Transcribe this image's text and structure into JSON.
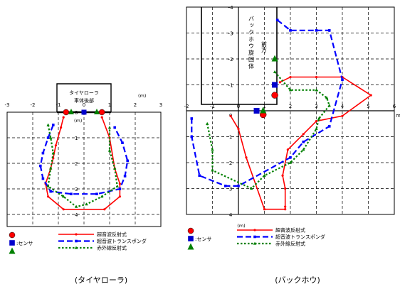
{
  "legend": {
    "sensor_label": ":センサ",
    "ultrasonic_reflection": "超音波反射式",
    "ultrasonic_transponder": "超音波トランスポンダ",
    "infrared_reflection": "赤外線反射式"
  },
  "colors": {
    "ultrasonic_reflection": "#ff0000",
    "ultrasonic_transponder": "#0000ff",
    "infrared_reflection": "#008000",
    "sensor_circle": "#ff0000",
    "sensor_square": "#0000cc",
    "sensor_triangle": "#008000",
    "grid": "#000000"
  },
  "chart_data": [
    {
      "type": "line",
      "caption": "(タイヤローラ)",
      "vehicle_label_line1": "タイヤローラ",
      "vehicle_label_line2": "車体後部",
      "x_unit": "(m)",
      "y_unit": "(m)",
      "xlim": [
        -3,
        3
      ],
      "ylim": [
        0,
        4.5
      ],
      "x_ticks": [
        "-3",
        "-2",
        "-1",
        "0",
        "1",
        "2",
        "3"
      ],
      "y_ticks": [
        "0",
        "1",
        "2",
        "3",
        "4"
      ],
      "grid": true,
      "legend_position": "bottom",
      "sensors": {
        "circles": [
          [
            -0.7,
            0.0
          ],
          [
            0.7,
            0.0
          ]
        ],
        "squares": [
          [
            0.0,
            0.0
          ]
        ],
        "triangles": [
          [
            -0.5,
            0.0
          ],
          [
            0.5,
            0.0
          ]
        ]
      },
      "series": [
        {
          "key": "ultrasonic_reflection",
          "style": "solid",
          "x": [
            -0.8,
            -0.9,
            -1.1,
            -1.2,
            -1.3,
            -1.5,
            -1.4,
            -0.8,
            0.8,
            1.4,
            1.4,
            1.2,
            1.0,
            0.7
          ],
          "y": [
            0.2,
            0.6,
            1.3,
            1.8,
            2.2,
            2.8,
            3.3,
            3.8,
            3.8,
            3.3,
            2.8,
            2.2,
            1.0,
            0.2
          ]
        },
        {
          "key": "ultrasonic_transponder",
          "style": "dash",
          "x": [
            -1.2,
            -1.4,
            -1.6,
            -1.7,
            -1.6,
            -1.3,
            -0.5,
            0.5,
            1.4,
            1.6,
            1.7,
            1.5,
            1.2
          ],
          "y": [
            0.5,
            1.0,
            1.6,
            2.1,
            2.6,
            3.1,
            3.2,
            3.2,
            3.0,
            2.5,
            1.9,
            1.2,
            0.6
          ]
        },
        {
          "key": "infrared_reflection",
          "style": "dot",
          "x": [
            -1.4,
            -1.3,
            -1.2,
            -1.3,
            -1.4,
            -0.8,
            -0.3,
            0.1,
            0.7,
            1.3,
            1.2,
            1.0,
            1.0
          ],
          "y": [
            0.5,
            1.0,
            1.6,
            2.2,
            2.9,
            3.3,
            3.7,
            3.6,
            3.3,
            2.9,
            2.2,
            1.5,
            0.6
          ]
        }
      ]
    },
    {
      "type": "line",
      "caption": "(バックホウ)",
      "vehicle_label": "バックホウ旋回体",
      "front_label": "前方",
      "x_unit": "(m)",
      "y_unit": "(m)",
      "x_axis_symbol": "m",
      "xlim": [
        -2,
        6
      ],
      "ylim": [
        -4,
        4
      ],
      "x_ticks": [
        "-2",
        "-1",
        "0",
        "1",
        "2",
        "3",
        "4",
        "5",
        "6"
      ],
      "y_ticks_upper": [
        "-4",
        "-3",
        "-2",
        "-1"
      ],
      "y_ticks_lower": [
        "1",
        "2",
        "3",
        "4"
      ],
      "y_tick_zero": "0",
      "grid": true,
      "legend_position": "bottom",
      "sensors": {
        "circles": [
          [
            1.4,
            -0.6
          ],
          [
            0.95,
            0.15
          ]
        ],
        "squares": [
          [
            1.4,
            -1.0
          ],
          [
            0.7,
            0.0
          ]
        ],
        "triangles": [
          [
            1.4,
            -2.0
          ],
          [
            0.95,
            0.0
          ]
        ]
      },
      "series": [
        {
          "key": "ultrasonic_reflection",
          "style": "solid",
          "x": [
            1.6,
            2.0,
            3.0,
            4.0,
            5.1,
            4.0,
            3.0,
            2.5,
            1.9,
            1.7,
            1.8,
            1.8,
            1.8,
            1.0,
            0.3,
            0.0,
            -0.3
          ],
          "y": [
            -1.1,
            -1.3,
            -1.3,
            -1.3,
            -0.6,
            0.2,
            0.4,
            0.9,
            1.5,
            2.5,
            3.0,
            3.7,
            3.8,
            3.8,
            1.8,
            0.7,
            0.2
          ]
        },
        {
          "key": "ultrasonic_transponder",
          "style": "dash",
          "x": [
            1.5,
            2.0,
            3.0,
            3.5,
            4.0,
            3.5,
            2.5,
            2.0,
            0.0,
            -0.5,
            -1.5,
            -1.8,
            -1.8
          ],
          "y": [
            -3.5,
            -3.1,
            -3.1,
            -3.1,
            -1.2,
            0.6,
            1.2,
            1.8,
            2.9,
            2.9,
            2.5,
            1.0,
            0.3
          ]
        },
        {
          "key": "infrared_reflection",
          "style": "dot",
          "x": [
            1.4,
            2.0,
            3.0,
            3.4,
            3.5,
            3.1,
            3.0,
            2.5,
            2.0,
            1.0,
            0.5,
            -1.0,
            -1.0,
            -1.2
          ],
          "y": [
            -1.5,
            -0.8,
            -0.8,
            -0.5,
            -0.2,
            0.3,
            0.7,
            1.5,
            2.0,
            2.5,
            3.0,
            2.3,
            1.5,
            0.5
          ]
        }
      ]
    }
  ]
}
